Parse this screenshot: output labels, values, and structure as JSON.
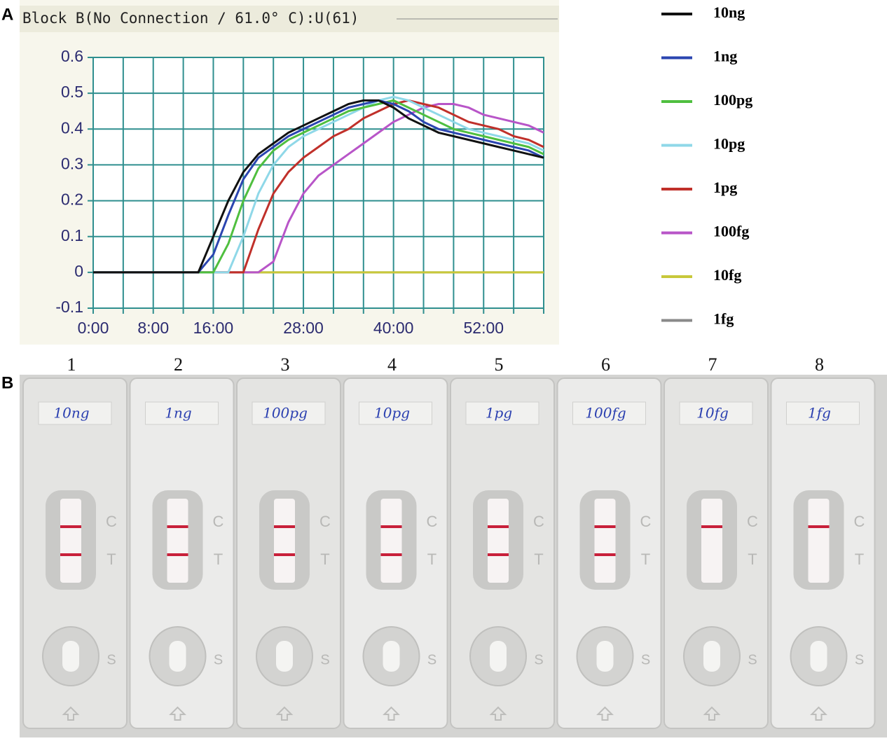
{
  "panel_labels": [
    "A",
    "B"
  ],
  "chart_data": {
    "type": "line",
    "title": "Block B(No Connection / 61.0° C):U(61)",
    "x": [
      0,
      2,
      4,
      6,
      8,
      10,
      12,
      14,
      16,
      18,
      20,
      22,
      24,
      26,
      28,
      30,
      32,
      34,
      36,
      38,
      40,
      42,
      44,
      46,
      48,
      50,
      52,
      54,
      56,
      58,
      60
    ],
    "xlim": [
      0,
      60
    ],
    "xticks": [
      {
        "value": 0,
        "label": "0:00"
      },
      {
        "value": 8,
        "label": "8:00"
      },
      {
        "value": 16,
        "label": "16:00"
      },
      {
        "value": 28,
        "label": "28:00"
      },
      {
        "value": 40,
        "label": "40:00"
      },
      {
        "value": 52,
        "label": "52:00"
      }
    ],
    "xgrid": [
      0,
      4,
      8,
      12,
      16,
      20,
      24,
      28,
      32,
      36,
      40,
      44,
      48,
      52,
      56,
      60
    ],
    "ylim": [
      -0.1,
      0.6
    ],
    "yticks": [
      -0.1,
      0,
      0.1,
      0.2,
      0.3,
      0.4,
      0.5,
      0.6
    ],
    "grid": true,
    "legend": "right",
    "series": [
      {
        "name": "10ng",
        "color": "#111111",
        "values": [
          0,
          0,
          0,
          0,
          0,
          0,
          0,
          0,
          0.1,
          0.2,
          0.28,
          0.33,
          0.36,
          0.39,
          0.41,
          0.43,
          0.45,
          0.47,
          0.48,
          0.48,
          0.46,
          0.43,
          0.41,
          0.39,
          0.38,
          0.37,
          0.36,
          0.35,
          0.34,
          0.33,
          0.32
        ]
      },
      {
        "name": "1ng",
        "color": "#2b45b0",
        "values": [
          0,
          0,
          0,
          0,
          0,
          0,
          0,
          0,
          0.05,
          0.16,
          0.26,
          0.32,
          0.35,
          0.38,
          0.4,
          0.42,
          0.44,
          0.46,
          0.47,
          0.48,
          0.47,
          0.45,
          0.42,
          0.4,
          0.39,
          0.38,
          0.37,
          0.36,
          0.35,
          0.34,
          0.32
        ]
      },
      {
        "name": "100pg",
        "color": "#4fbf3f",
        "values": [
          0,
          0,
          0,
          0,
          0,
          0,
          0,
          0,
          0,
          0.08,
          0.2,
          0.29,
          0.34,
          0.37,
          0.39,
          0.41,
          0.43,
          0.45,
          0.46,
          0.47,
          0.48,
          0.46,
          0.44,
          0.42,
          0.4,
          0.39,
          0.38,
          0.37,
          0.36,
          0.35,
          0.33
        ]
      },
      {
        "name": "10pg",
        "color": "#8fd8e8",
        "values": [
          0,
          0,
          0,
          0,
          0,
          0,
          0,
          0,
          0,
          0,
          0.1,
          0.22,
          0.3,
          0.35,
          0.38,
          0.4,
          0.42,
          0.44,
          0.46,
          0.48,
          0.49,
          0.48,
          0.46,
          0.44,
          0.42,
          0.4,
          0.39,
          0.38,
          0.37,
          0.36,
          0.34
        ]
      },
      {
        "name": "1pg",
        "color": "#c0302a",
        "values": [
          0,
          0,
          0,
          0,
          0,
          0,
          0,
          0,
          0,
          0,
          0,
          0.12,
          0.22,
          0.28,
          0.32,
          0.35,
          0.38,
          0.4,
          0.43,
          0.45,
          0.47,
          0.48,
          0.47,
          0.46,
          0.44,
          0.42,
          0.41,
          0.4,
          0.38,
          0.37,
          0.35
        ]
      },
      {
        "name": "100fg",
        "color": "#b855c8",
        "values": [
          0,
          0,
          0,
          0,
          0,
          0,
          0,
          0,
          0,
          0,
          0,
          0,
          0.03,
          0.14,
          0.22,
          0.27,
          0.3,
          0.33,
          0.36,
          0.39,
          0.42,
          0.44,
          0.46,
          0.47,
          0.47,
          0.46,
          0.44,
          0.43,
          0.42,
          0.41,
          0.39
        ]
      },
      {
        "name": "10fg",
        "color": "#c8c83a",
        "values": [
          null,
          null,
          null,
          null,
          null,
          0,
          0,
          0,
          0,
          0,
          0,
          0,
          0,
          0,
          0,
          0,
          0,
          0,
          0,
          0,
          0,
          0,
          0,
          0,
          0,
          0,
          0,
          0,
          0,
          0,
          0
        ]
      },
      {
        "name": "1fg",
        "color": "#8a8a8a",
        "values": [
          0,
          0,
          0,
          0,
          0,
          0,
          0,
          0,
          0,
          0,
          0,
          0,
          0,
          0,
          0,
          0,
          0,
          0,
          0,
          0,
          0,
          0,
          0,
          0,
          0,
          0,
          0,
          0,
          0,
          0,
          0
        ]
      }
    ]
  },
  "strip_letters": {
    "c": "C",
    "t": "T",
    "s": "S"
  },
  "strips": [
    {
      "number": "1",
      "label": "10ng",
      "test_line": true
    },
    {
      "number": "2",
      "label": "1ng",
      "test_line": true
    },
    {
      "number": "3",
      "label": "100pg",
      "test_line": true
    },
    {
      "number": "4",
      "label": "10pg",
      "test_line": true
    },
    {
      "number": "5",
      "label": "1pg",
      "test_line": true
    },
    {
      "number": "6",
      "label": "100fg",
      "test_line": true
    },
    {
      "number": "7",
      "label": "10fg",
      "test_line": false
    },
    {
      "number": "8",
      "label": "1fg",
      "test_line": false
    }
  ]
}
